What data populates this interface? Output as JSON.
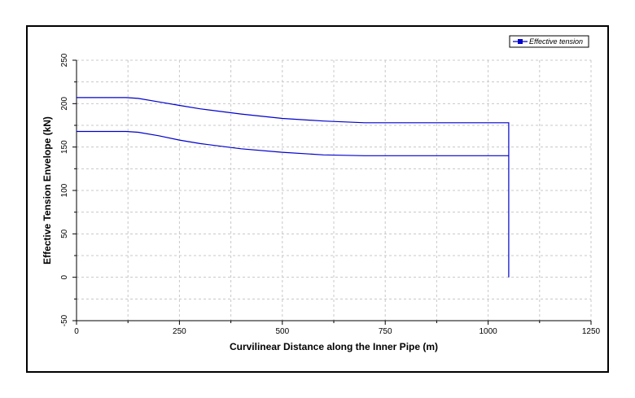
{
  "chart_data": {
    "type": "line",
    "xlabel": "Curvilinear Distance along the Inner Pipe (m)",
    "ylabel": "Effective Tension Envelope (kN)",
    "xlim": [
      0,
      1250
    ],
    "ylim": [
      -50,
      250
    ],
    "xticks": [
      0,
      250,
      500,
      750,
      1000,
      1250
    ],
    "yticks": [
      -50,
      0,
      50,
      100,
      150,
      200,
      250
    ],
    "grid": true,
    "grid_style": "dashed",
    "legend_position": "top-right",
    "colors": {
      "series": "#0000cc",
      "grid": "#c8c8c8",
      "frame": "#000000"
    },
    "series": [
      {
        "name": "Effective tension",
        "legend_marker": "square",
        "x": [
          0,
          120,
          150,
          200,
          250,
          300,
          400,
          500,
          600,
          700,
          750,
          1000,
          1050,
          1050,
          1050,
          1000,
          750,
          700,
          600,
          500,
          400,
          300,
          250,
          200,
          150,
          120,
          0
        ],
        "y": [
          207,
          207,
          206,
          202,
          198,
          194,
          188,
          183,
          180,
          178,
          178,
          178,
          178,
          0,
          140,
          140,
          140,
          140,
          141,
          144,
          148,
          154,
          158,
          163,
          167,
          168,
          168
        ]
      }
    ]
  }
}
